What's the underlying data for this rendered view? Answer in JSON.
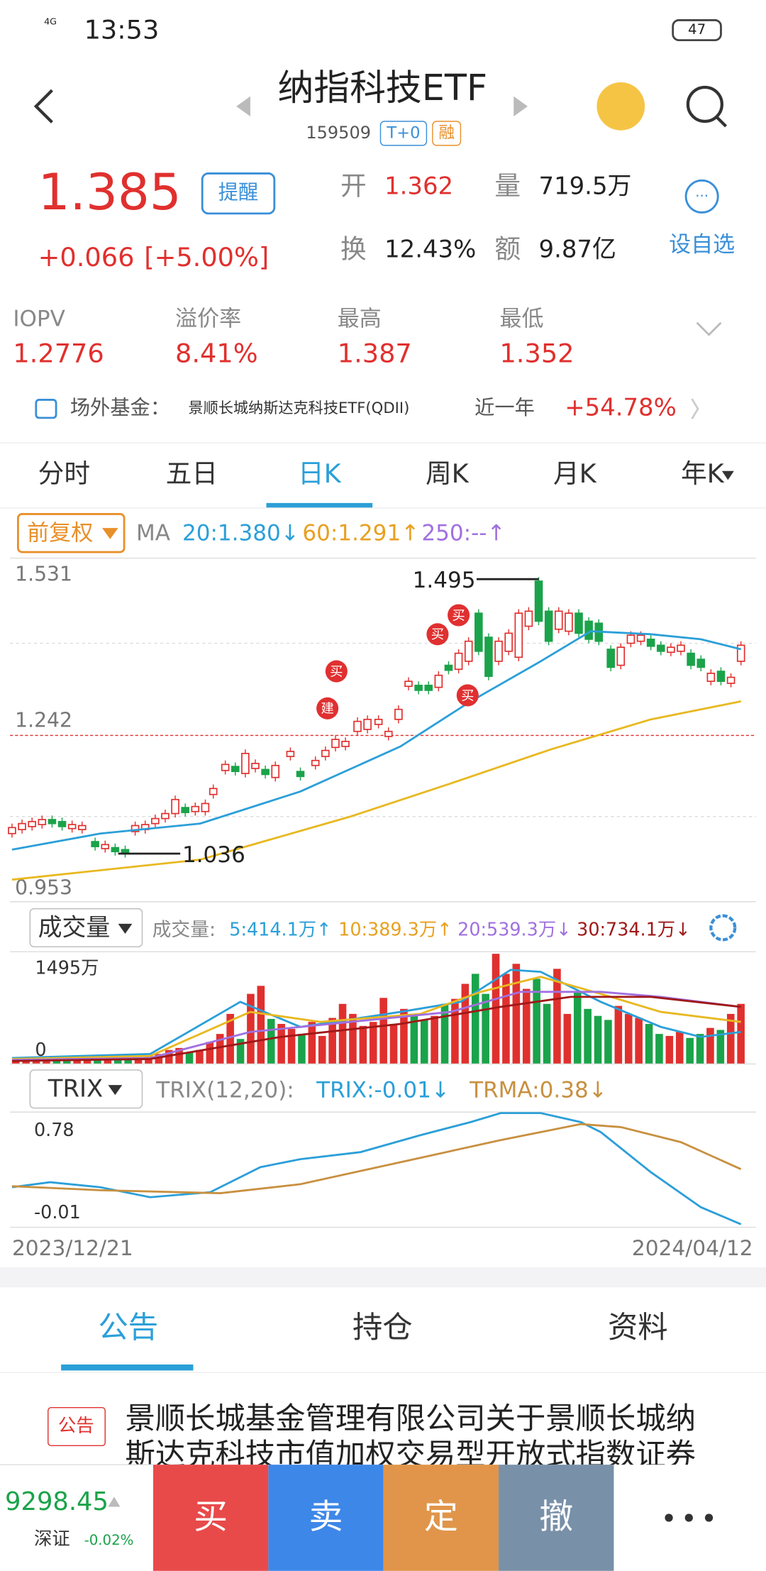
{
  "status": {
    "network": "4G",
    "time": "13:53",
    "battery": "47"
  },
  "header": {
    "title": "纳指科技ETF",
    "code": "159509",
    "tags": [
      "T+0",
      "融"
    ]
  },
  "quote": {
    "price": "1.385",
    "change": "+0.066",
    "pct": "[+5.00%]",
    "alert": "提醒",
    "watch": "设自选",
    "stats": [
      {
        "label": "开",
        "value": "1.362"
      },
      {
        "label": "量",
        "value": "719.5万"
      },
      {
        "label": "换",
        "value": "12.43%"
      },
      {
        "label": "额",
        "value": "9.87亿"
      }
    ]
  },
  "metrics": [
    {
      "label": "IOPV",
      "value": "1.2776"
    },
    {
      "label": "溢价率",
      "value": "8.41%"
    },
    {
      "label": "最高",
      "value": "1.387"
    },
    {
      "label": "最低",
      "value": "1.352"
    }
  ],
  "offsite": {
    "label": "场外基金：",
    "fund": "景顺长城纳斯达克科技ETF(QDII)",
    "period": "近一年",
    "return": "+54.78%"
  },
  "tabs": [
    "分时",
    "五日",
    "日K",
    "周K",
    "月K",
    "年K"
  ],
  "chart": {
    "adjust": "前复权",
    "ma_label": "MA",
    "ma": [
      "20:1.380↓",
      "60:1.291↑",
      "250:--↑"
    ],
    "yticks": [
      "1.531",
      "1.242",
      "0.953"
    ],
    "high": "1.495",
    "low": "1.036",
    "markers": [
      "买",
      "建",
      "买",
      "买",
      "买"
    ]
  },
  "volume": {
    "selector": "成交量",
    "label": "成交量:",
    "ma": [
      "5:414.1万↑",
      "10:389.3万↑",
      "20:539.3万↓",
      "30:734.1万↓"
    ],
    "top": "1495万",
    "zero": "0"
  },
  "trix": {
    "selector": "TRIX",
    "params": "TRIX(12,20):",
    "items": [
      "TRIX:-0.01↓",
      "TRMA:0.38↓"
    ],
    "top": "0.78",
    "bottom": "-0.01"
  },
  "dates": [
    "2023/12/21",
    "2024/04/12"
  ],
  "info_tabs": [
    "公告",
    "持仓",
    "资料"
  ],
  "announcement": {
    "tag": "公告",
    "lines": [
      "景顺长城基金管理有限公司关于景顺长城纳",
      "斯达克科技市值加权交易型开放式指数证券"
    ]
  },
  "bottom": {
    "index": "9298.45",
    "market": "深证",
    "index_change": "-0.02%",
    "buttons": [
      "买",
      "卖",
      "定",
      "撤"
    ]
  }
}
